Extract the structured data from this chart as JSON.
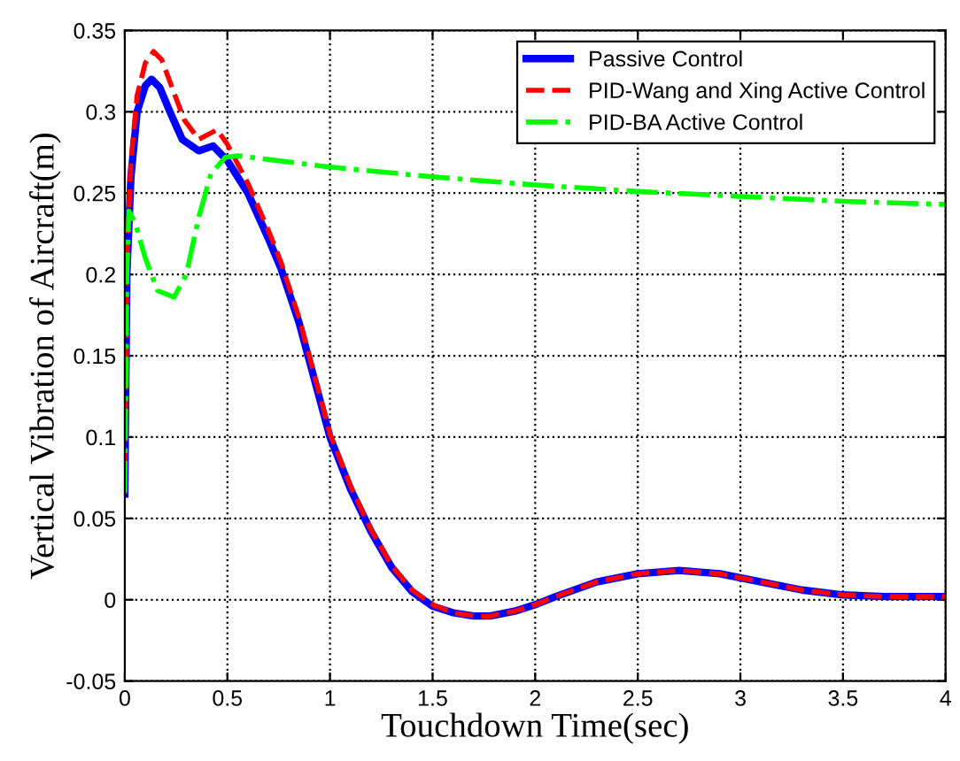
{
  "chart_data": {
    "type": "line",
    "xlabel": "Touchdown Time(sec)",
    "ylabel": "Vertical Vibration of Aircraft(m)",
    "xlim": [
      0,
      4
    ],
    "ylim": [
      -0.05,
      0.35
    ],
    "xticks": [
      0,
      0.5,
      1,
      1.5,
      2,
      2.5,
      3,
      3.5,
      4
    ],
    "yticks": [
      -0.05,
      0,
      0.05,
      0.1,
      0.15,
      0.2,
      0.25,
      0.3,
      0.35
    ],
    "grid": true,
    "legend": "top right",
    "marker": "none",
    "series": [
      {
        "name": "Passive Control",
        "color": "#0000ff",
        "line_style": "solid",
        "x": [
          0,
          0.01,
          0.03,
          0.06,
          0.1,
          0.13,
          0.17,
          0.22,
          0.28,
          0.36,
          0.43,
          0.5,
          0.6,
          0.7,
          0.76,
          0.85,
          1,
          1.1,
          1.2,
          1.3,
          1.4,
          1.5,
          1.6,
          1.7,
          1.78,
          1.9,
          2,
          2.1,
          2.3,
          2.5,
          2.7,
          2.9,
          3.1,
          3.3,
          3.5,
          3.7,
          4
        ],
        "values": [
          0.065,
          0.2,
          0.26,
          0.3,
          0.316,
          0.32,
          0.315,
          0.3,
          0.283,
          0.276,
          0.279,
          0.27,
          0.25,
          0.222,
          0.204,
          0.17,
          0.1,
          0.068,
          0.042,
          0.02,
          0.005,
          -0.004,
          -0.008,
          -0.01,
          -0.01,
          -0.007,
          -0.003,
          0.002,
          0.011,
          0.016,
          0.018,
          0.016,
          0.011,
          0.006,
          0.003,
          0.002,
          0.002
        ]
      },
      {
        "name": "PID-Wang and Xing Active Control",
        "color": "#ff0000",
        "line_style": "dashed",
        "x": [
          0,
          0.01,
          0.03,
          0.06,
          0.1,
          0.14,
          0.18,
          0.23,
          0.29,
          0.36,
          0.45,
          0.5,
          0.6,
          0.7,
          0.76,
          0.85,
          1,
          1.1,
          1.2,
          1.3,
          1.4,
          1.5,
          1.6,
          1.7,
          1.78,
          1.9,
          2,
          2.1,
          2.3,
          2.5,
          2.7,
          2.9,
          3.1,
          3.3,
          3.5,
          3.7,
          4
        ],
        "values": [
          0.065,
          0.21,
          0.27,
          0.31,
          0.33,
          0.337,
          0.332,
          0.315,
          0.295,
          0.283,
          0.289,
          0.28,
          0.256,
          0.227,
          0.208,
          0.173,
          0.102,
          0.07,
          0.043,
          0.021,
          0.006,
          -0.003,
          -0.008,
          -0.01,
          -0.01,
          -0.007,
          -0.003,
          0.002,
          0.011,
          0.016,
          0.018,
          0.016,
          0.011,
          0.006,
          0.003,
          0.002,
          0.002
        ]
      },
      {
        "name": "PID-BA Active Control",
        "color": "#00ff00",
        "line_style": "dashdot",
        "x": [
          0,
          0.01,
          0.02,
          0.05,
          0.1,
          0.16,
          0.24,
          0.3,
          0.36,
          0.42,
          0.49,
          0.55,
          1,
          1.5,
          2,
          2.5,
          3,
          3.5,
          4
        ],
        "values": [
          0.066,
          0.2,
          0.239,
          0.232,
          0.21,
          0.19,
          0.186,
          0.2,
          0.235,
          0.262,
          0.272,
          0.273,
          0.266,
          0.26,
          0.255,
          0.251,
          0.248,
          0.245,
          0.243
        ]
      }
    ]
  }
}
